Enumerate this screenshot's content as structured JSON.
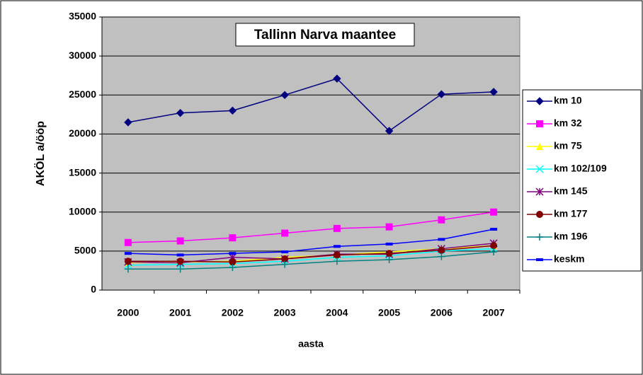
{
  "chart_data": {
    "type": "line",
    "title": "Tallinn Narva maantee",
    "x_label": "aasta",
    "y_label": "AKÖL a/ööp",
    "categories": [
      "2000",
      "2001",
      "2002",
      "2003",
      "2004",
      "2005",
      "2006",
      "2007"
    ],
    "ylim": [
      0,
      35000
    ],
    "yticks": [
      0,
      5000,
      10000,
      15000,
      20000,
      25000,
      30000,
      35000
    ],
    "grid": true,
    "legend": "right",
    "series": [
      {
        "name": "km 10",
        "color": "#000080",
        "marker": "diamond",
        "values": [
          21500,
          22700,
          23000,
          25000,
          27100,
          20400,
          25100,
          25400
        ]
      },
      {
        "name": "km 32",
        "color": "#ff00ff",
        "marker": "square",
        "values": [
          6100,
          6300,
          6700,
          7300,
          7900,
          8100,
          9000,
          10000
        ]
      },
      {
        "name": "km 75",
        "color": "#ffff00",
        "marker": "triangle",
        "values": [
          3500,
          3600,
          3700,
          4200,
          4500,
          4900,
          5300,
          5700
        ]
      },
      {
        "name": "km 102/109",
        "color": "#00ffff",
        "marker": "x",
        "values": [
          3200,
          3300,
          3400,
          3700,
          4200,
          4400,
          5000,
          5300
        ]
      },
      {
        "name": "km 145",
        "color": "#800080",
        "marker": "star",
        "values": [
          3600,
          3500,
          4200,
          4000,
          4600,
          4600,
          5300,
          6000
        ]
      },
      {
        "name": "km 177",
        "color": "#800000",
        "marker": "circle",
        "values": [
          3700,
          3700,
          3600,
          4000,
          4500,
          4700,
          5100,
          5700
        ]
      },
      {
        "name": "km 196",
        "color": "#008080",
        "marker": "plus",
        "values": [
          2700,
          2700,
          2900,
          3300,
          3700,
          3900,
          4300,
          4900
        ]
      },
      {
        "name": "keskm",
        "color": "#0000ff",
        "marker": "dash",
        "values": [
          4700,
          4500,
          4700,
          4900,
          5600,
          5900,
          6500,
          7800
        ]
      }
    ]
  }
}
